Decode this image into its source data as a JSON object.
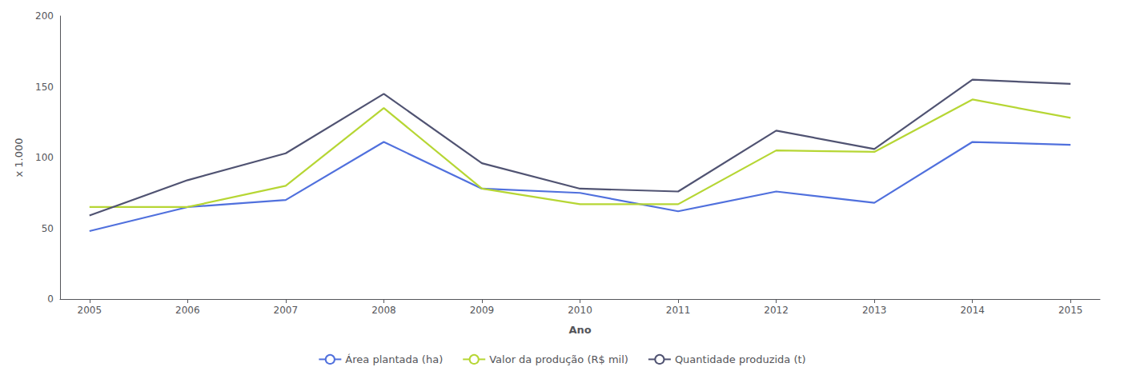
{
  "chart_data": {
    "type": "line",
    "x": [
      2005,
      2006,
      2007,
      2008,
      2009,
      2010,
      2011,
      2012,
      2013,
      2014,
      2015
    ],
    "series": [
      {
        "name": "Área plantada (ha)",
        "values": [
          48,
          65,
          70,
          111,
          78,
          75,
          62,
          76,
          68,
          111,
          109
        ]
      },
      {
        "name": "Valor da produção (R$ mil)",
        "values": [
          65,
          65,
          80,
          135,
          78,
          67,
          67,
          105,
          104,
          141,
          128
        ]
      },
      {
        "name": "Quantidade produzida (t)",
        "values": [
          59,
          84,
          103,
          145,
          96,
          78,
          76,
          119,
          106,
          155,
          152
        ]
      }
    ],
    "xlabel": "Ano",
    "ylabel": "x 1.000",
    "xlim": [
      2004.7,
      2015.3
    ],
    "xticks": [
      2005,
      2006,
      2007,
      2008,
      2009,
      2010,
      2011,
      2012,
      2013,
      2014,
      2015
    ],
    "ylim": [
      0,
      200
    ],
    "yticks": [
      0,
      50,
      100,
      150,
      200
    ],
    "grid": false,
    "legend": "bottom"
  }
}
